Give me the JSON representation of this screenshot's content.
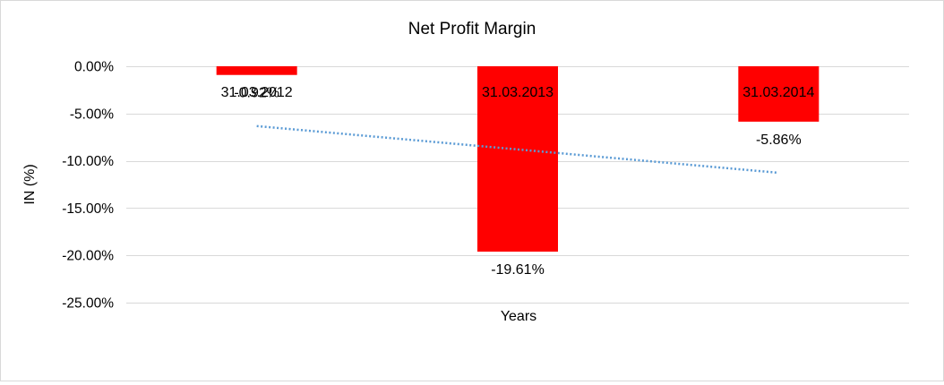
{
  "chart_data": {
    "type": "bar",
    "title": "Net Profit Margin",
    "xlabel": "Years",
    "ylabel": "IN (%)",
    "categories": [
      "31.03.2012",
      "31.03.2013",
      "31.03.2014"
    ],
    "series": [
      {
        "values": [
          -0.92,
          -19.61,
          -5.86
        ],
        "data_labels": [
          "-0.92%",
          "-19.61%",
          "-5.86%"
        ]
      }
    ],
    "ylim": [
      -25,
      0
    ],
    "yticks": [
      0,
      -5,
      -10,
      -15,
      -20,
      -25
    ],
    "ytick_labels": [
      "0.00%",
      "-5.00%",
      "-10.00%",
      "-15.00%",
      "-20.00%",
      "-25.00%"
    ],
    "trendline": {
      "type": "linear",
      "style": "dotted"
    },
    "grid": true,
    "legend": "none",
    "colors": {
      "bar": "#ff0000",
      "trendline": "#5b9bd5",
      "grid": "#d9d9d9"
    }
  }
}
